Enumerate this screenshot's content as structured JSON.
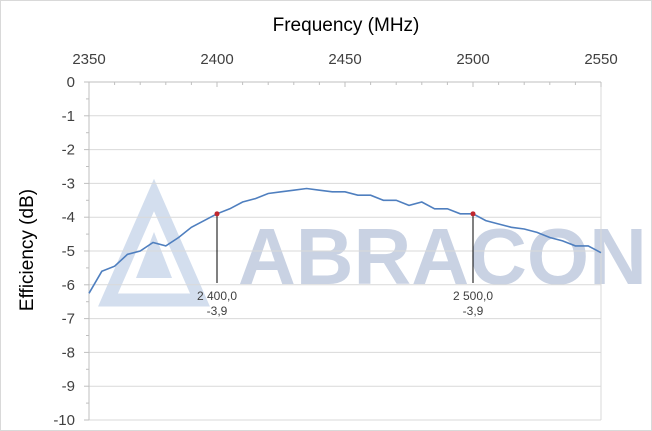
{
  "chart_data": {
    "type": "line",
    "title": "",
    "xlabel": "Frequency (MHz)",
    "ylabel": "Efficiency (dB)",
    "xlim": [
      2350,
      2550
    ],
    "ylim": [
      -10,
      0
    ],
    "x_ticks": [
      "2350",
      "2400",
      "2450",
      "2500",
      "2550"
    ],
    "y_ticks": [
      "0",
      "-1",
      "-2",
      "-3",
      "-4",
      "-5",
      "-6",
      "-7",
      "-8",
      "-9",
      "-10"
    ],
    "grid": true,
    "x_axis_position": "top",
    "series": [
      {
        "name": "",
        "color": "#4f7fbf",
        "x": [
          2350,
          2355,
          2360,
          2365,
          2370,
          2375,
          2380,
          2385,
          2390,
          2395,
          2400,
          2405,
          2410,
          2415,
          2420,
          2425,
          2430,
          2435,
          2440,
          2445,
          2450,
          2455,
          2460,
          2465,
          2470,
          2475,
          2480,
          2485,
          2490,
          2495,
          2500,
          2505,
          2510,
          2515,
          2520,
          2525,
          2530,
          2535,
          2540,
          2545,
          2550
        ],
        "y": [
          -6.25,
          -5.6,
          -5.45,
          -5.1,
          -5.0,
          -4.75,
          -4.85,
          -4.6,
          -4.3,
          -4.1,
          -3.9,
          -3.75,
          -3.55,
          -3.45,
          -3.3,
          -3.25,
          -3.2,
          -3.15,
          -3.2,
          -3.25,
          -3.25,
          -3.35,
          -3.35,
          -3.5,
          -3.5,
          -3.65,
          -3.55,
          -3.75,
          -3.75,
          -3.9,
          -3.9,
          -4.1,
          -4.2,
          -4.3,
          -4.35,
          -4.45,
          -4.6,
          -4.7,
          -4.85,
          -4.85,
          -5.05
        ]
      }
    ],
    "annotations": [
      {
        "x": 2400,
        "y": -3.9,
        "line1": "2 400,0",
        "line2": "-3,9"
      },
      {
        "x": 2500,
        "y": -3.9,
        "line1": "2 500,0",
        "line2": "-3,9"
      }
    ]
  },
  "watermark": {
    "text": "ABRACON",
    "color": "#c9d2e3"
  }
}
